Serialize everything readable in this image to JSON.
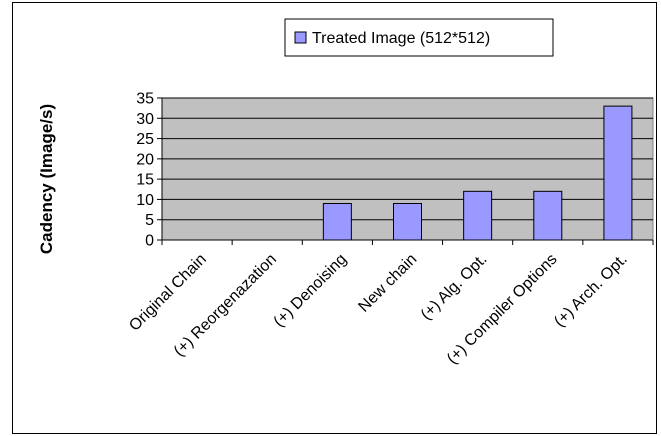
{
  "chart_data": {
    "type": "bar",
    "title": "",
    "xlabel": "",
    "ylabel": "Cadency (Image/s)",
    "ylim": [
      0,
      35
    ],
    "yticks": [
      0,
      5,
      10,
      15,
      20,
      25,
      30,
      35
    ],
    "grid": true,
    "legend_position": "top",
    "categories": [
      "Original Chain",
      "(+) Reorgenazation",
      "(+) Denoising",
      "New chain",
      "(+) Alg. Opt.",
      "(+) Compiler Options",
      "(+) Arch. Opt."
    ],
    "series": [
      {
        "name": "Treated Image (512*512)",
        "values": [
          0,
          0,
          9,
          9,
          12,
          12,
          33
        ],
        "color": "#9999ff"
      }
    ],
    "plot_background": "#c0c0c0"
  }
}
